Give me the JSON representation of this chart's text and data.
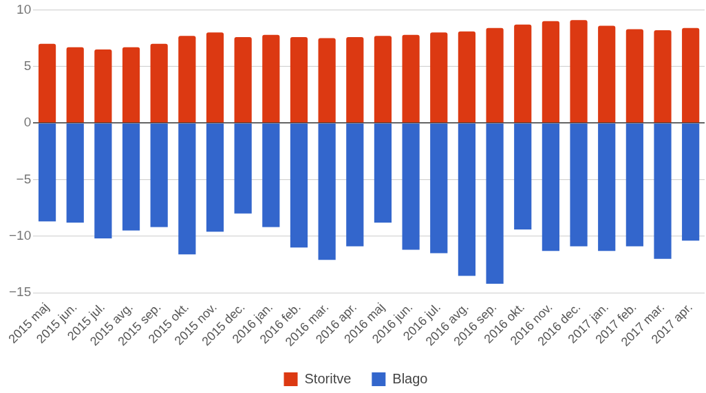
{
  "chart_data": {
    "type": "bar",
    "stacked": true,
    "categories": [
      "2015 maj",
      "2015 jun.",
      "2015 jul.",
      "2015 avg.",
      "2015 sep.",
      "2015 okt.",
      "2015 nov.",
      "2015 dec.",
      "2016 jan.",
      "2016 feb.",
      "2016 mar.",
      "2016 apr.",
      "2016 maj",
      "2016 jun.",
      "2016 jul.",
      "2016 avg.",
      "2016 sep.",
      "2016 okt.",
      "2016 nov.",
      "2016 dec.",
      "2017 jan.",
      "2017 feb.",
      "2017 mar.",
      "2017 apr."
    ],
    "series": [
      {
        "name": "Storitve",
        "color": "#dc3912",
        "values": [
          7.0,
          6.7,
          6.5,
          6.7,
          7.0,
          7.7,
          8.0,
          7.6,
          7.8,
          7.6,
          7.5,
          7.6,
          7.7,
          7.8,
          8.0,
          8.1,
          8.4,
          8.7,
          9.0,
          9.1,
          8.6,
          8.3,
          8.2,
          8.4
        ]
      },
      {
        "name": "Blago",
        "color": "#3366cc",
        "values": [
          -8.7,
          -8.8,
          -10.2,
          -9.5,
          -9.2,
          -11.6,
          -9.6,
          -8.0,
          -9.2,
          -11.0,
          -12.1,
          -10.9,
          -8.8,
          -11.2,
          -11.5,
          -13.5,
          -14.2,
          -9.4,
          -11.3,
          -10.9,
          -11.3,
          -10.9,
          -12.0,
          -10.4
        ]
      }
    ],
    "ylim": [
      -15,
      10
    ],
    "yticks": [
      -15,
      -10,
      -5,
      0,
      5,
      10
    ],
    "grid": "y",
    "legend": "bottom"
  }
}
